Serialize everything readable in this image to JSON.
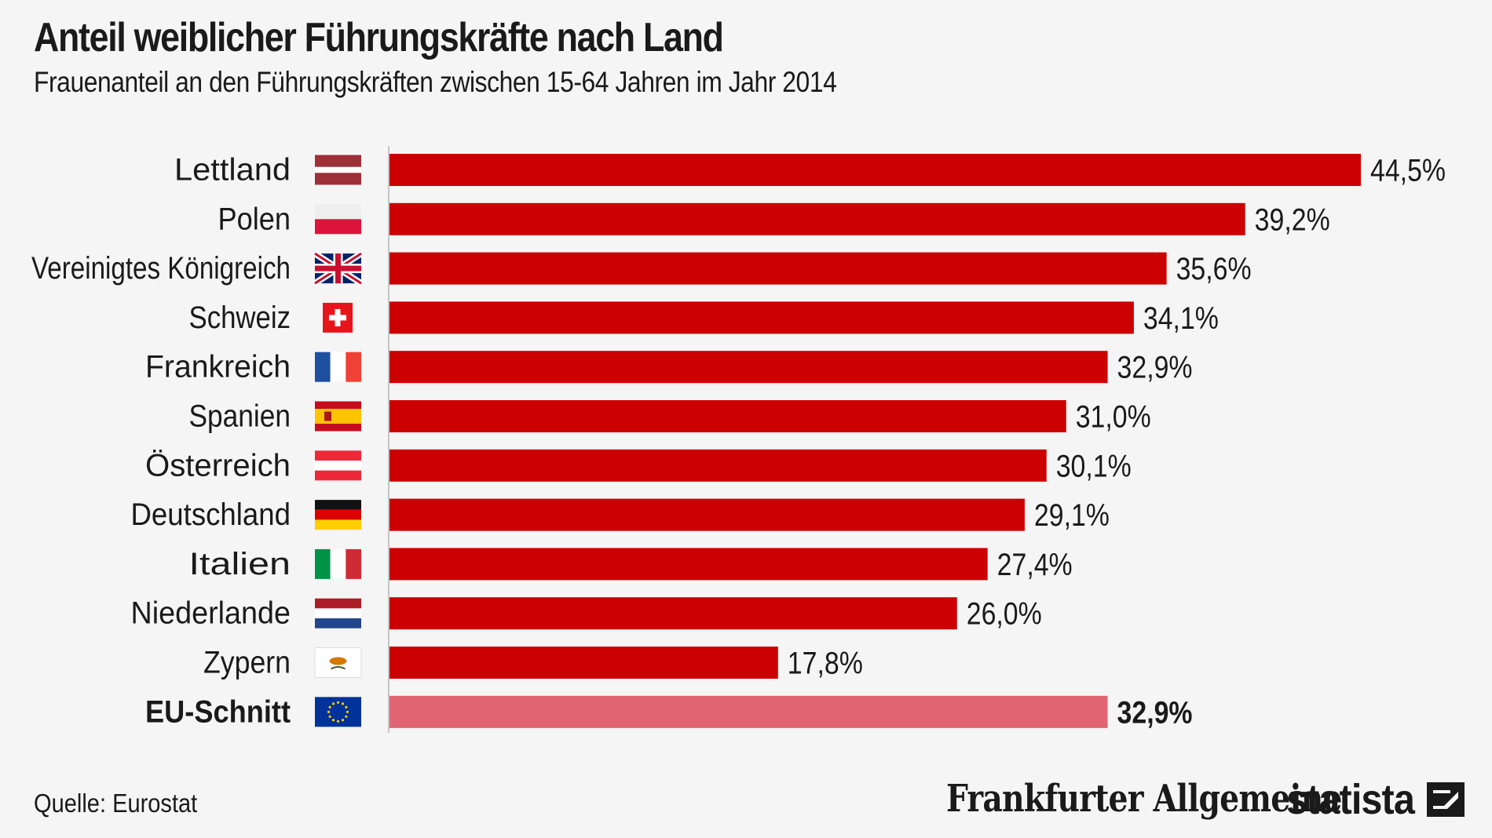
{
  "header": {
    "title": "Anteil weiblicher Führungskräfte nach Land",
    "subtitle": "Frauenanteil an den Führungskräften zwischen 15-64 Jahren im Jahr 2014"
  },
  "footer": {
    "source": "Quelle: Eurostat",
    "faz_logo": "Frankfurter Allgemeine",
    "statista_logo": "statista"
  },
  "colors": {
    "bar": "#cc0000",
    "bar_highlight": "#e06472",
    "background": "#f5f5f5",
    "text": "#1a1a1a"
  },
  "chart_data": {
    "type": "bar",
    "orientation": "horizontal",
    "title": "Anteil weiblicher Führungskräfte nach Land",
    "subtitle": "Frauenanteil an den Führungskräften zwischen 15-64 Jahren im Jahr 2014",
    "xlabel": "",
    "ylabel": "",
    "xlim": [
      0,
      44.5
    ],
    "grid": false,
    "categories": [
      "Lettland",
      "Polen",
      "Vereinigtes Königreich",
      "Schweiz",
      "Frankreich",
      "Spanien",
      "Österreich",
      "Deutschland",
      "Italien",
      "Niederlande",
      "Zypern",
      "EU-Schnitt"
    ],
    "values": [
      44.5,
      39.2,
      35.6,
      34.1,
      32.9,
      31.0,
      30.1,
      29.1,
      27.4,
      26.0,
      17.8,
      32.9
    ],
    "value_labels": [
      "44,5%",
      "39,2%",
      "35,6%",
      "34,1%",
      "32,9%",
      "31,0%",
      "30,1%",
      "29,1%",
      "27,4%",
      "26,0%",
      "17,8%",
      "32,9%"
    ],
    "flags": [
      "latvia-flag-icon",
      "poland-flag-icon",
      "uk-flag-icon",
      "switzerland-flag-icon",
      "france-flag-icon",
      "spain-flag-icon",
      "austria-flag-icon",
      "germany-flag-icon",
      "italy-flag-icon",
      "netherlands-flag-icon",
      "cyprus-flag-icon",
      "eu-flag-icon"
    ],
    "highlight": [
      "EU-Schnitt"
    ]
  }
}
